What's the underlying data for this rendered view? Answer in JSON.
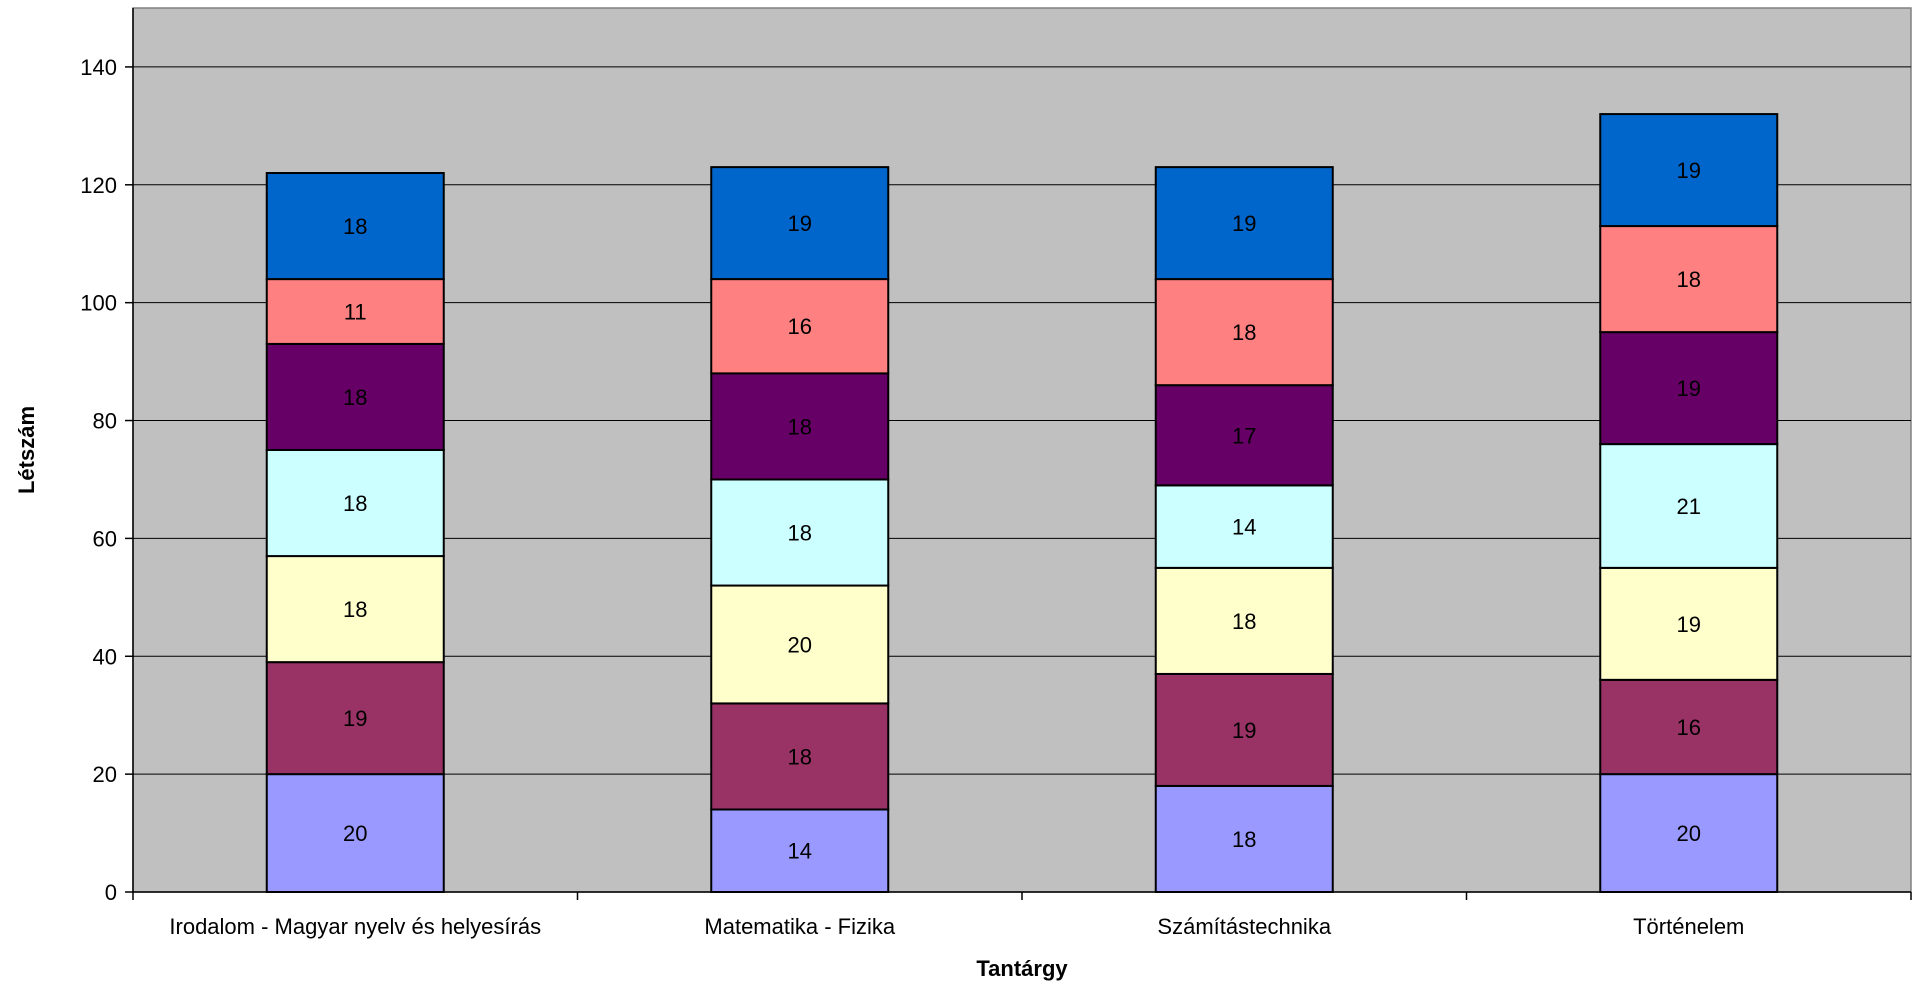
{
  "chart_data": {
    "type": "bar",
    "stacked": true,
    "xlabel": "Tantárgy",
    "ylabel": "Létszám",
    "ylim": [
      0,
      150
    ],
    "yticks": [
      0,
      20,
      40,
      60,
      80,
      100,
      120,
      140
    ],
    "grid": true,
    "categories": [
      "Irodalom - Magyar nyelv és helyesírás",
      "Matematika - Fizika",
      "Számítástechnika",
      "Történelem"
    ],
    "series": [
      {
        "color": "#9999ff",
        "values": [
          20,
          14,
          18,
          20
        ]
      },
      {
        "color": "#993366",
        "values": [
          19,
          18,
          19,
          16
        ]
      },
      {
        "color": "#ffffcc",
        "values": [
          18,
          20,
          18,
          19
        ]
      },
      {
        "color": "#ccffff",
        "values": [
          18,
          18,
          14,
          21
        ]
      },
      {
        "color": "#660066",
        "values": [
          18,
          18,
          17,
          19
        ]
      },
      {
        "color": "#ff8080",
        "values": [
          11,
          16,
          18,
          18
        ]
      },
      {
        "color": "#0066cc",
        "values": [
          18,
          19,
          19,
          19
        ]
      }
    ],
    "plot_background": "#c0c0c0"
  }
}
